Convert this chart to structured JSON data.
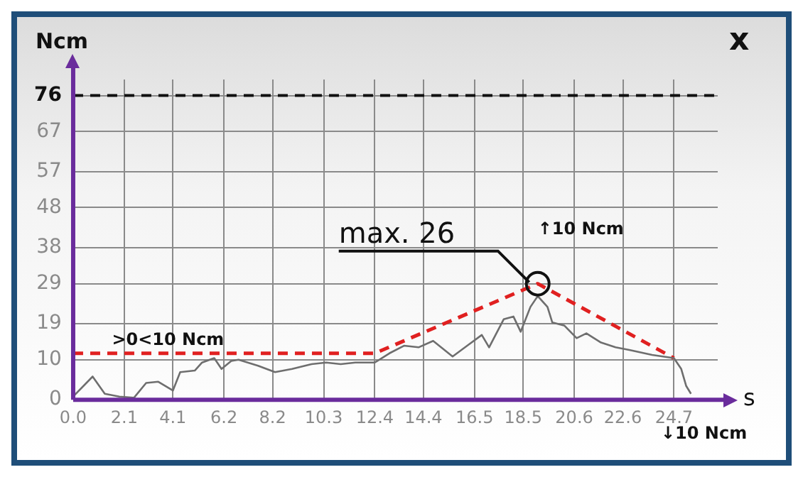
{
  "chart_data": {
    "type": "line",
    "xlabel": "s",
    "ylabel": "Ncm",
    "xlim": [
      0,
      26.5
    ],
    "ylim": [
      0,
      80
    ],
    "xticks": [
      {
        "value": 0,
        "label": "0.0"
      },
      2.1,
      4.1,
      6.2,
      8.2,
      10.3,
      12.4,
      14.4,
      16.5,
      18.5,
      20.6,
      22.6,
      24.7
    ],
    "yticks": [
      0,
      10,
      19,
      29,
      38,
      48,
      57,
      67,
      76
    ],
    "grid": true,
    "marker": "none",
    "series": [
      {
        "color": "#6e6e6e",
        "line_style": "solid",
        "x": [
          0,
          0.8,
          1.3,
          1.9,
          2.5,
          3.0,
          3.5,
          4.1,
          4.4,
          5.0,
          5.3,
          5.8,
          6.1,
          6.5,
          6.8,
          7.6,
          8.3,
          9.0,
          9.8,
          10.4,
          11.0,
          11.6,
          12.4,
          13.0,
          13.6,
          14.2,
          14.8,
          15.6,
          16.2,
          16.8,
          17.1,
          17.7,
          18.1,
          18.4,
          18.8,
          19.1,
          19.5,
          19.7,
          20.2,
          20.7,
          21.1,
          21.7,
          22.3,
          22.9,
          23.8,
          24.7,
          25.0,
          25.2,
          25.4
        ],
        "values": [
          0.8,
          5.8,
          1.5,
          0.8,
          0.5,
          4.2,
          4.5,
          2.3,
          6.9,
          7.3,
          9.3,
          10.4,
          7.7,
          9.7,
          10,
          8.5,
          6.9,
          7.7,
          8.9,
          9.3,
          8.9,
          9.3,
          9.3,
          11.6,
          13.5,
          13.1,
          14.7,
          10.8,
          13.5,
          16.2,
          13.1,
          20.1,
          20.8,
          17,
          23.2,
          25.9,
          23.2,
          19.3,
          18.5,
          15.4,
          16.6,
          14.3,
          13.1,
          12.4,
          11.2,
          10.4,
          7.7,
          3.5,
          1.5
        ]
      },
      {
        "color": "#e02020",
        "line_style": "dashed",
        "x": [
          0,
          12.4,
          19.1,
          24.7
        ],
        "values": [
          11.6,
          11.6,
          29,
          10.4
        ]
      }
    ],
    "ref_lines": [
      {
        "axis": "y",
        "value": 76,
        "color": "#111111",
        "line_style": "dashed"
      }
    ],
    "annotations": [
      {
        "text": "max. 26",
        "x": 19.1,
        "y": 29
      },
      ">0<10 Ncm",
      "↑10 Ncm",
      "↓10 Ncm",
      "x"
    ]
  }
}
